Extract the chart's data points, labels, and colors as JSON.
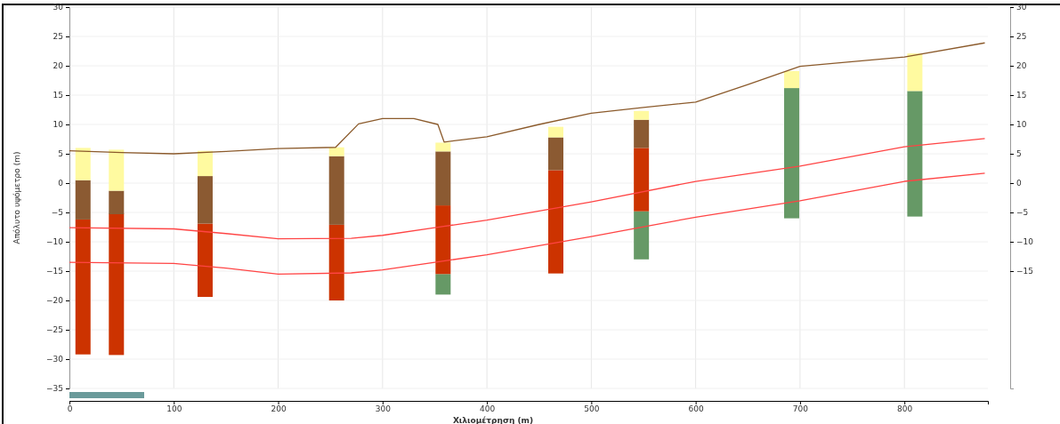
{
  "chart_data": [
    {
      "type": "bar",
      "xlabel": "Χιλιομέτρηση (m)",
      "ylabel": "Απόλυτο υψόμετρο (m)",
      "x": [
        13,
        45,
        130,
        256,
        358,
        466,
        548,
        692,
        810
      ],
      "series": [
        {
          "color": "#669966",
          "base": [
            null,
            null,
            null,
            null,
            -19,
            null,
            -13,
            -6,
            -5.7
          ],
          "values": [
            null,
            null,
            null,
            null,
            3.5,
            null,
            8.2,
            22.2,
            21.4
          ]
        },
        {
          "color": "#cc3300",
          "base": [
            -29.2,
            -29.3,
            -19.4,
            -20,
            -15.5,
            -15.4,
            -4.8,
            null,
            null
          ],
          "values": [
            23,
            24.1,
            12.5,
            12.9,
            11.7,
            17.6,
            10.8,
            null,
            null
          ]
        },
        {
          "color": "#8b5a32",
          "base": [
            -6.2,
            -5.3,
            -6.9,
            -7.1,
            -3.8,
            2.2,
            6,
            null,
            null
          ],
          "values": [
            6.7,
            4,
            8.1,
            11.7,
            9.2,
            5.6,
            4.8,
            null,
            null
          ]
        },
        {
          "color": "#fffaa0",
          "base": [
            0.5,
            -1.3,
            1.2,
            4.6,
            5.4,
            7.8,
            10.8,
            16.2,
            15.7
          ],
          "values": [
            5.5,
            7,
            4.3,
            1.5,
            1.5,
            1.8,
            1.5,
            2.9,
            6.4
          ]
        },
        {
          "type": "line",
          "color": "#8b5a2b",
          "x": [
            0,
            50,
            100,
            150,
            200,
            255,
            277,
            300,
            330,
            353,
            359,
            400,
            450,
            500,
            550,
            600,
            650,
            700,
            800,
            877
          ],
          "values": [
            5.5,
            5.2,
            5,
            5.4,
            5.9,
            6.1,
            10.1,
            11,
            11,
            10,
            7,
            7.9,
            10,
            11.9,
            12.9,
            13.8,
            16.8,
            19.9,
            21.5,
            23.9
          ]
        },
        {
          "type": "line",
          "color": "#ff4444",
          "x": [
            0,
            100,
            150,
            200,
            270,
            300,
            350,
            400,
            500,
            600,
            700,
            800,
            877
          ],
          "values": [
            -7.6,
            -7.8,
            -8.6,
            -9.5,
            -9.4,
            -8.9,
            -7.6,
            -6.3,
            -3.2,
            0.3,
            2.9,
            6.2,
            7.6
          ]
        },
        {
          "type": "line",
          "color": "#ff4444",
          "x": [
            0,
            100,
            150,
            200,
            270,
            300,
            350,
            400,
            500,
            600,
            700,
            800,
            877
          ],
          "values": [
            -13.5,
            -13.7,
            -14.5,
            -15.5,
            -15.3,
            -14.8,
            -13.5,
            -12.2,
            -9.1,
            -5.8,
            -3,
            0.3,
            1.7
          ]
        }
      ],
      "xlim": [
        0,
        880
      ],
      "xticks": [
        0,
        100,
        200,
        300,
        400,
        500,
        600,
        700,
        800
      ],
      "ylim": [
        -35,
        30
      ],
      "yticks": [
        -35,
        -30,
        -25,
        -20,
        -15,
        -10,
        -5,
        0,
        5,
        10,
        15,
        20,
        25,
        30
      ],
      "y2lim": [
        -35,
        30
      ],
      "y2ticks": [
        -15,
        -10,
        -5,
        0,
        5,
        10,
        15,
        20,
        25,
        30
      ],
      "grid": true
    }
  ]
}
